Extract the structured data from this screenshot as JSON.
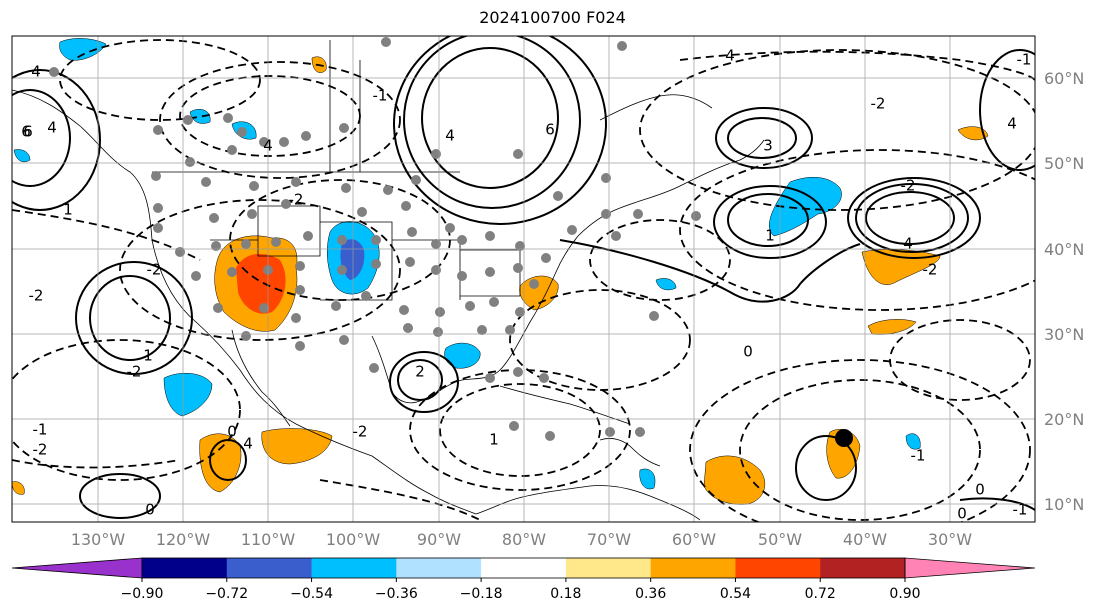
{
  "title": "2024100700 F024",
  "lat_labels": [
    "60°N",
    "50°N",
    "40°N",
    "30°N",
    "20°N",
    "10°N"
  ],
  "lon_labels": [
    "130°W",
    "120°W",
    "110°W",
    "100°W",
    "90°W",
    "80°W",
    "70°W",
    "60°W",
    "50°W",
    "40°W",
    "30°W"
  ],
  "colorbar": {
    "ticks": [
      "−0.90",
      "−0.72",
      "−0.54",
      "−0.36",
      "−0.18",
      "0.18",
      "0.36",
      "0.54",
      "0.72",
      "0.90"
    ],
    "colors": [
      "#9932cc",
      "#00008b",
      "#3a5fcd",
      "#00bfff",
      "#b0e2ff",
      "#ffffff",
      "#ffe88a",
      "#ffa500",
      "#ff4500",
      "#b22222",
      "#ff83b4"
    ]
  },
  "contour_labels": [
    "4",
    "6",
    "4",
    "6",
    "4",
    "1",
    "-1",
    "4",
    "-2",
    "-2",
    "-2",
    "1",
    "4",
    "3",
    "1",
    "4",
    "-2",
    "-2",
    "0",
    "0",
    "4",
    "-1",
    "2",
    "4",
    "1",
    "-2",
    "-2",
    "-2",
    "-1",
    "0",
    "6",
    "0",
    "-2",
    "0",
    "-1",
    "-1"
  ]
}
